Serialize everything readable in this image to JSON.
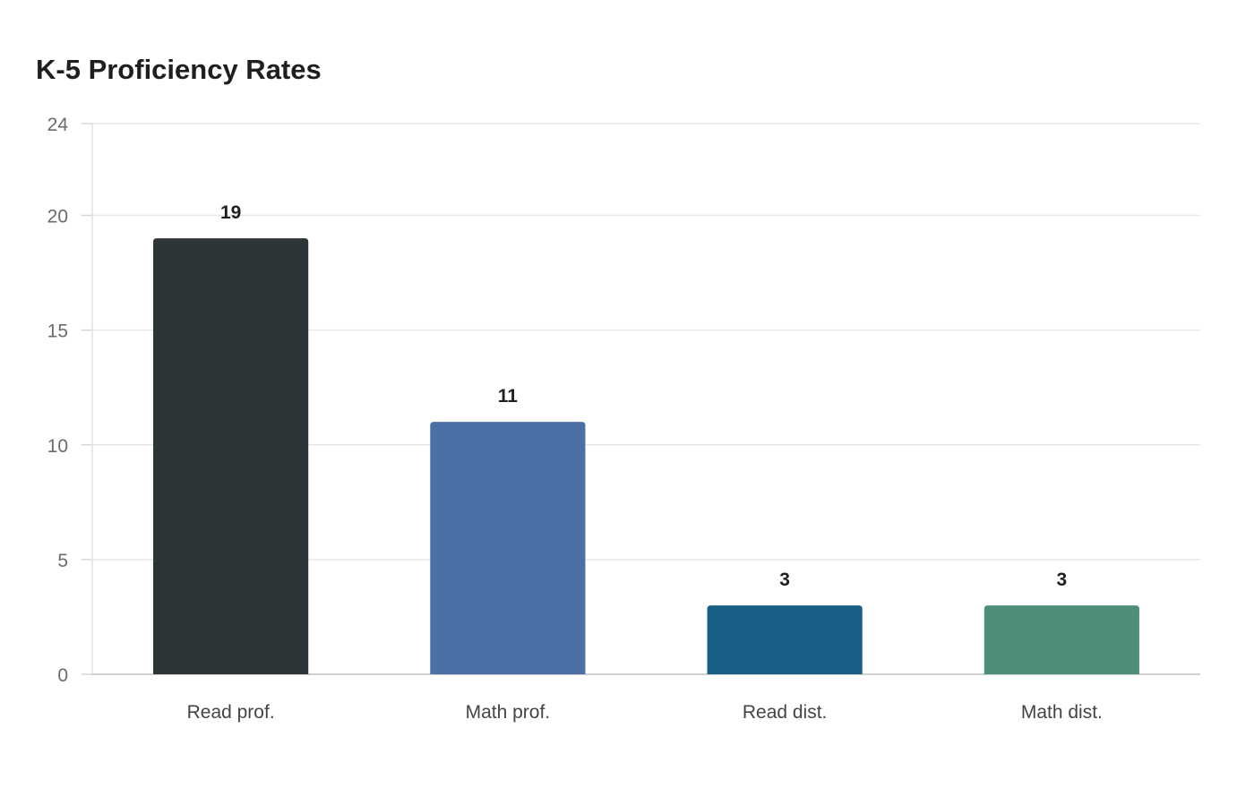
{
  "chart_data": {
    "type": "bar",
    "title": "K-5 Proficiency Rates",
    "xlabel": "",
    "ylabel": "",
    "categories": [
      "Read prof.",
      "Math prof.",
      "Read dist.",
      "Math dist."
    ],
    "values": [
      19,
      11,
      3,
      3
    ],
    "colors": [
      "#2e3538",
      "#4a6fa5",
      "#175f85",
      "#4f8e7a"
    ],
    "ylim": [
      0,
      24
    ],
    "yticks": [
      0,
      5,
      10,
      15,
      20,
      24
    ],
    "grid": true,
    "legend": "none",
    "data_labels": true
  }
}
